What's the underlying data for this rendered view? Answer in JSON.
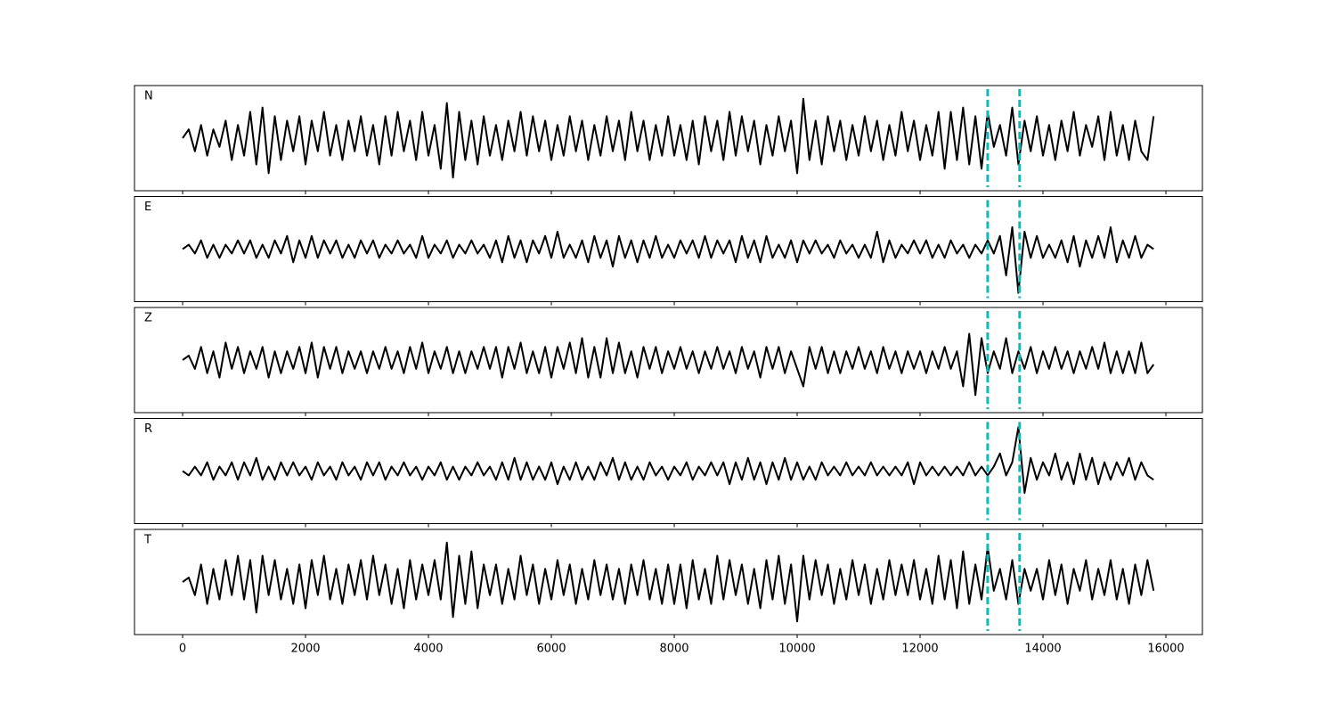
{
  "chart_data": {
    "type": "line",
    "layout": "stacked",
    "xlim": [
      -783,
      16594
    ],
    "xticks": [
      0,
      2000,
      4000,
      6000,
      8000,
      10000,
      12000,
      14000,
      16000
    ],
    "ylim": [
      -1.2,
      1.2
    ],
    "vlines": [
      13100,
      13620
    ],
    "vline_color": "#00bfbf",
    "vline_style": "dashed",
    "x": [
      0,
      100,
      200,
      300,
      400,
      500,
      600,
      700,
      800,
      900,
      1000,
      1100,
      1200,
      1300,
      1400,
      1500,
      1600,
      1700,
      1800,
      1900,
      2000,
      2100,
      2200,
      2300,
      2400,
      2500,
      2600,
      2700,
      2800,
      2900,
      3000,
      3100,
      3200,
      3300,
      3400,
      3500,
      3600,
      3700,
      3800,
      3900,
      4000,
      4100,
      4200,
      4300,
      4400,
      4500,
      4600,
      4700,
      4800,
      4900,
      5000,
      5100,
      5200,
      5300,
      5400,
      5500,
      5600,
      5700,
      5800,
      5900,
      6000,
      6100,
      6200,
      6300,
      6400,
      6500,
      6600,
      6700,
      6800,
      6900,
      7000,
      7100,
      7200,
      7300,
      7400,
      7500,
      7600,
      7700,
      7800,
      7900,
      8000,
      8100,
      8200,
      8300,
      8400,
      8500,
      8600,
      8700,
      8800,
      8900,
      9000,
      9100,
      9200,
      9300,
      9400,
      9500,
      9600,
      9700,
      9800,
      9900,
      10000,
      10100,
      10200,
      10300,
      10400,
      10500,
      10600,
      10700,
      10800,
      10900,
      11000,
      11100,
      11200,
      11300,
      11400,
      11500,
      11600,
      11700,
      11800,
      11900,
      12000,
      12100,
      12200,
      12300,
      12400,
      12500,
      12600,
      12700,
      12800,
      12900,
      13000,
      13100,
      13200,
      13300,
      13400,
      13500,
      13600,
      13700,
      13800,
      13900,
      14000,
      14100,
      14200,
      14300,
      14400,
      14500,
      14600,
      14700,
      14800,
      14900,
      15000,
      15100,
      15200,
      15300,
      15400,
      15500,
      15600,
      15700,
      15800
    ],
    "series": [
      {
        "name": "N",
        "color": "#000000",
        "values": [
          0,
          0.2,
          -0.3,
          0.3,
          -0.4,
          0.2,
          -0.2,
          0.4,
          -0.5,
          0.3,
          -0.4,
          0.6,
          -0.6,
          0.7,
          -0.8,
          0.5,
          -0.5,
          0.4,
          -0.3,
          0.5,
          -0.6,
          0.4,
          -0.3,
          0.6,
          -0.4,
          0.3,
          -0.5,
          0.4,
          -0.3,
          0.5,
          -0.4,
          0.3,
          -0.6,
          0.5,
          -0.4,
          0.6,
          -0.3,
          0.4,
          -0.5,
          0.6,
          -0.4,
          0.3,
          -0.7,
          0.8,
          -0.9,
          0.6,
          -0.5,
          0.4,
          -0.6,
          0.5,
          -0.4,
          0.3,
          -0.5,
          0.4,
          -0.3,
          0.6,
          -0.4,
          0.5,
          -0.3,
          0.4,
          -0.5,
          0.3,
          -0.4,
          0.5,
          -0.3,
          0.4,
          -0.5,
          0.3,
          -0.4,
          0.5,
          -0.3,
          0.4,
          -0.5,
          0.6,
          -0.3,
          0.4,
          -0.5,
          0.3,
          -0.4,
          0.5,
          -0.4,
          0.3,
          -0.5,
          0.4,
          -0.6,
          0.5,
          -0.3,
          0.4,
          -0.5,
          0.6,
          -0.4,
          0.5,
          -0.3,
          0.4,
          -0.6,
          0.3,
          -0.4,
          0.5,
          -0.3,
          0.4,
          -0.8,
          0.9,
          -0.5,
          0.4,
          -0.6,
          0.5,
          -0.3,
          0.4,
          -0.5,
          0.3,
          -0.4,
          0.5,
          -0.3,
          0.4,
          -0.5,
          0.3,
          -0.4,
          0.6,
          -0.3,
          0.4,
          -0.5,
          0.3,
          -0.4,
          0.6,
          -0.7,
          0.6,
          -0.5,
          0.7,
          -0.6,
          0.5,
          -0.7,
          0.6,
          -0.2,
          0.3,
          -0.4,
          0.7,
          -0.6,
          0.4,
          -0.3,
          0.5,
          -0.4,
          0.3,
          -0.5,
          0.4,
          -0.3,
          0.6,
          -0.4,
          0.3,
          -0.2,
          0.5,
          -0.5,
          0.6,
          -0.4,
          0.3,
          -0.5,
          0.4,
          -0.3,
          -0.5,
          0.5
        ]
      },
      {
        "name": "E",
        "color": "#000000",
        "values": [
          0,
          0.1,
          -0.1,
          0.2,
          -0.2,
          0.1,
          -0.2,
          0.1,
          -0.1,
          0.2,
          -0.1,
          0.2,
          -0.2,
          0.1,
          -0.2,
          0.2,
          -0.1,
          0.3,
          -0.3,
          0.2,
          -0.2,
          0.3,
          -0.2,
          0.2,
          -0.1,
          0.2,
          -0.2,
          0.1,
          -0.2,
          0.2,
          -0.1,
          0.2,
          -0.2,
          0.1,
          -0.1,
          0.2,
          -0.1,
          0.1,
          -0.2,
          0.3,
          -0.2,
          0.1,
          -0.1,
          0.2,
          -0.2,
          0.1,
          -0.1,
          0.2,
          -0.1,
          0.1,
          -0.2,
          0.2,
          -0.3,
          0.3,
          -0.2,
          0.2,
          -0.3,
          0.2,
          -0.1,
          0.3,
          -0.2,
          0.4,
          -0.2,
          0.1,
          -0.2,
          0.2,
          -0.3,
          0.3,
          -0.2,
          0.2,
          -0.4,
          0.3,
          -0.2,
          0.2,
          -0.3,
          0.2,
          -0.2,
          0.3,
          -0.2,
          0.1,
          -0.2,
          0.2,
          -0.1,
          0.2,
          -0.2,
          0.3,
          -0.2,
          0.2,
          -0.1,
          0.2,
          -0.3,
          0.3,
          -0.2,
          0.2,
          -0.3,
          0.3,
          -0.2,
          0.1,
          -0.2,
          0.2,
          -0.3,
          0.2,
          -0.1,
          0.2,
          -0.1,
          0.1,
          -0.2,
          0.2,
          -0.1,
          0.1,
          -0.2,
          0.1,
          -0.2,
          0.4,
          -0.3,
          0.2,
          -0.2,
          0.1,
          -0.1,
          0.2,
          -0.1,
          0.2,
          -0.2,
          0.1,
          -0.2,
          0.2,
          -0.1,
          0.1,
          -0.2,
          0.1,
          -0.1,
          0.2,
          -0.1,
          0.3,
          -0.6,
          0.5,
          -1.0,
          0.4,
          -0.2,
          0.3,
          -0.2,
          0.1,
          -0.2,
          0.2,
          -0.3,
          0.3,
          -0.4,
          0.2,
          -0.2,
          0.3,
          -0.2,
          0.5,
          -0.3,
          0.2,
          -0.2,
          0.3,
          -0.2,
          0.1,
          0
        ]
      },
      {
        "name": "Z",
        "color": "#000000",
        "values": [
          0,
          0.1,
          -0.2,
          0.3,
          -0.3,
          0.2,
          -0.4,
          0.4,
          -0.2,
          0.3,
          -0.3,
          0.2,
          -0.2,
          0.3,
          -0.4,
          0.2,
          -0.3,
          0.2,
          -0.2,
          0.3,
          -0.3,
          0.4,
          -0.4,
          0.3,
          -0.2,
          0.3,
          -0.3,
          0.2,
          -0.2,
          0.2,
          -0.3,
          0.2,
          -0.2,
          0.3,
          -0.2,
          0.2,
          -0.3,
          0.3,
          -0.2,
          0.4,
          -0.3,
          0.2,
          -0.2,
          0.3,
          -0.3,
          0.2,
          -0.3,
          0.2,
          -0.2,
          0.3,
          -0.2,
          0.3,
          -0.4,
          0.3,
          -0.2,
          0.4,
          -0.3,
          0.2,
          -0.3,
          0.3,
          -0.4,
          0.3,
          -0.2,
          0.4,
          -0.3,
          0.5,
          -0.4,
          0.3,
          -0.4,
          0.5,
          -0.3,
          0.4,
          -0.3,
          0.2,
          -0.4,
          0.3,
          -0.2,
          0.3,
          -0.3,
          0.2,
          -0.2,
          0.3,
          -0.2,
          0.2,
          -0.3,
          0.2,
          -0.2,
          0.3,
          -0.2,
          0.2,
          -0.3,
          0.3,
          -0.2,
          0.2,
          -0.4,
          0.3,
          -0.2,
          0.3,
          -0.3,
          0.2,
          -0.2,
          -0.6,
          0.3,
          -0.2,
          0.3,
          -0.3,
          0.2,
          -0.3,
          0.2,
          -0.2,
          0.3,
          -0.2,
          0.2,
          -0.3,
          0.3,
          -0.2,
          0.2,
          -0.3,
          0.2,
          -0.2,
          0.2,
          -0.3,
          0.2,
          -0.2,
          0.3,
          -0.2,
          0.2,
          -0.6,
          0.6,
          -0.8,
          0.5,
          -0.3,
          0.2,
          -0.2,
          0.5,
          -0.3,
          0.2,
          -0.2,
          0.3,
          -0.3,
          0.2,
          -0.2,
          0.3,
          -0.2,
          0.2,
          -0.3,
          0.2,
          -0.2,
          0.3,
          -0.2,
          0.4,
          -0.3,
          0.2,
          -0.3,
          0.2,
          -0.3,
          0.4,
          -0.3,
          -0.1
        ]
      },
      {
        "name": "R",
        "color": "#000000",
        "values": [
          0,
          -0.1,
          0.1,
          -0.1,
          0.2,
          -0.2,
          0.1,
          -0.1,
          0.2,
          -0.2,
          0.2,
          -0.1,
          0.3,
          -0.2,
          0.1,
          -0.2,
          0.2,
          -0.1,
          0.2,
          -0.1,
          0.1,
          -0.2,
          0.2,
          -0.1,
          0.1,
          -0.2,
          0.2,
          -0.1,
          0.1,
          -0.2,
          0.2,
          -0.1,
          0.2,
          -0.2,
          0.1,
          -0.1,
          0.2,
          -0.1,
          0.1,
          -0.2,
          0.1,
          -0.1,
          0.2,
          -0.2,
          0.1,
          -0.2,
          0.1,
          -0.1,
          0.2,
          -0.1,
          0.1,
          -0.2,
          0.2,
          -0.2,
          0.3,
          -0.2,
          0.2,
          -0.2,
          0.1,
          -0.2,
          0.2,
          -0.3,
          0.1,
          -0.2,
          0.2,
          -0.2,
          0.1,
          -0.2,
          0.2,
          -0.1,
          0.3,
          -0.2,
          0.2,
          -0.2,
          0.1,
          -0.2,
          0.2,
          -0.1,
          0.1,
          -0.2,
          0.1,
          -0.1,
          0.2,
          -0.2,
          0.1,
          -0.1,
          0.2,
          -0.1,
          0.2,
          -0.3,
          0.2,
          -0.2,
          0.3,
          -0.2,
          0.2,
          -0.3,
          0.2,
          -0.2,
          0.3,
          -0.2,
          0.2,
          -0.2,
          0.1,
          -0.2,
          0.2,
          -0.1,
          0.1,
          -0.1,
          0.2,
          -0.1,
          0.1,
          -0.1,
          0.2,
          -0.1,
          0.1,
          -0.1,
          0.1,
          -0.1,
          0.2,
          -0.3,
          0.2,
          -0.1,
          0.1,
          -0.1,
          0.1,
          -0.1,
          0.1,
          -0.1,
          0.2,
          -0.1,
          0.1,
          -0.1,
          0.1,
          0.4,
          -0.1,
          0.2,
          1.0,
          -0.5,
          0.3,
          -0.2,
          0.2,
          -0.1,
          0.4,
          -0.2,
          0.2,
          -0.3,
          0.4,
          -0.2,
          0.3,
          -0.3,
          0.2,
          -0.2,
          0.2,
          -0.1,
          0.3,
          -0.2,
          0.2,
          -0.1,
          -0.2
        ]
      },
      {
        "name": "T",
        "color": "#000000",
        "values": [
          0,
          0.1,
          -0.3,
          0.4,
          -0.5,
          0.3,
          -0.4,
          0.5,
          -0.3,
          0.6,
          -0.4,
          0.5,
          -0.7,
          0.6,
          -0.3,
          0.5,
          -0.4,
          0.3,
          -0.5,
          0.4,
          -0.6,
          0.5,
          -0.3,
          0.6,
          -0.4,
          0.3,
          -0.5,
          0.4,
          -0.3,
          0.5,
          -0.4,
          0.6,
          -0.3,
          0.4,
          -0.5,
          0.3,
          -0.6,
          0.5,
          -0.4,
          0.4,
          -0.3,
          0.5,
          -0.4,
          0.9,
          -0.8,
          0.6,
          -0.5,
          0.7,
          -0.6,
          0.4,
          -0.3,
          0.4,
          -0.5,
          0.3,
          -0.4,
          0.6,
          -0.3,
          0.4,
          -0.5,
          0.3,
          -0.4,
          0.5,
          -0.3,
          0.4,
          -0.5,
          0.3,
          -0.4,
          0.5,
          -0.3,
          0.4,
          -0.4,
          0.3,
          -0.5,
          0.4,
          -0.3,
          0.5,
          -0.4,
          0.3,
          -0.5,
          0.4,
          -0.5,
          0.4,
          -0.6,
          0.5,
          -0.4,
          0.3,
          -0.5,
          0.6,
          -0.4,
          0.5,
          -0.3,
          0.4,
          -0.5,
          0.3,
          -0.6,
          0.5,
          -0.4,
          0.6,
          -0.5,
          0.4,
          -0.9,
          0.6,
          -0.4,
          0.5,
          -0.3,
          0.4,
          -0.5,
          0.3,
          -0.4,
          0.5,
          -0.3,
          0.4,
          -0.5,
          0.3,
          -0.4,
          0.5,
          -0.3,
          0.4,
          -0.3,
          0.5,
          -0.4,
          0.3,
          -0.5,
          0.6,
          -0.4,
          0.5,
          -0.6,
          0.7,
          -0.5,
          0.4,
          -0.4,
          0.8,
          -0.2,
          0.3,
          -0.4,
          0.5,
          -0.5,
          0.3,
          -0.2,
          0.3,
          -0.4,
          0.5,
          -0.3,
          0.4,
          -0.5,
          0.3,
          -0.2,
          0.5,
          -0.4,
          0.3,
          -0.3,
          0.5,
          -0.4,
          0.3,
          -0.5,
          0.4,
          -0.3,
          0.5,
          -0.2
        ]
      }
    ]
  }
}
